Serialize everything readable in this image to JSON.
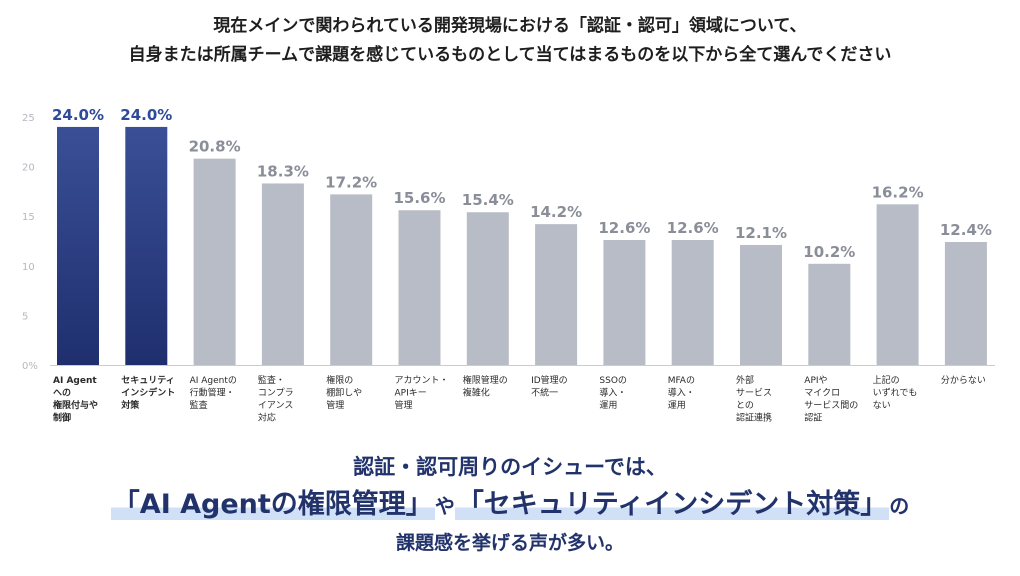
{
  "question": {
    "line1": "現在メインで関わられている開発現場における「認証・認可」領域について、",
    "line2": "自身または所属チームで課題を感じているものとして当てはまるものを以下から全て選んでください"
  },
  "conclusion": {
    "line1": "認証・認可周りのイシューでは、",
    "highlight1": "「AI Agentの権限管理」",
    "connector": "や",
    "highlight2": "「セキュリティインシデント対策」",
    "suffix": "の",
    "line3": "課題感を挙げる声が多い。"
  },
  "colors": {
    "highlight_bar": "#1f2f6e",
    "highlight_bar_top": "#3a4f96",
    "normal_bar": "#b8bcc6",
    "highlight_label": "#2e4a9a",
    "normal_label": "#8a8e98",
    "tick": "#b5b8bf"
  },
  "chart_data": {
    "type": "bar",
    "categories": [
      [
        "AI Agent",
        "への",
        "権限付与や",
        "制御"
      ],
      [
        "セキュリティ",
        "インシデント",
        "対策"
      ],
      [
        "AI Agentの",
        "行動管理・",
        "監査"
      ],
      [
        "監査・",
        "コンプラ",
        "イアンス",
        "対応"
      ],
      [
        "権限の",
        "棚卸しや",
        "管理"
      ],
      [
        "アカウント・",
        "APIキー",
        "管理"
      ],
      [
        "権限管理の",
        "複雑化"
      ],
      [
        "ID管理の",
        "不統一"
      ],
      [
        "SSOの",
        "導入・",
        "運用"
      ],
      [
        "MFAの",
        "導入・",
        "運用"
      ],
      [
        "外部",
        "サービス",
        "との",
        "認証連携"
      ],
      [
        "APIや",
        "マイクロ",
        "サービス間の",
        "認証"
      ],
      [
        "上記の",
        "いずれでも",
        "ない"
      ],
      [
        "分からない"
      ]
    ],
    "values": [
      24.0,
      24.0,
      20.8,
      18.3,
      17.2,
      15.6,
      15.4,
      14.2,
      12.6,
      12.6,
      12.1,
      10.2,
      16.2,
      12.4
    ],
    "value_labels": [
      "24.0%",
      "24.0%",
      "20.8%",
      "18.3%",
      "17.2%",
      "15.6%",
      "15.4%",
      "14.2%",
      "12.6%",
      "12.6%",
      "12.1%",
      "10.2%",
      "16.2%",
      "12.4%"
    ],
    "highlighted": [
      true,
      true,
      false,
      false,
      false,
      false,
      false,
      false,
      false,
      false,
      false,
      false,
      false,
      false
    ],
    "y_ticks": [
      "0%",
      "5",
      "10",
      "15",
      "20",
      "25"
    ],
    "y_tick_values": [
      0,
      5,
      10,
      15,
      20,
      25
    ],
    "ylim": [
      0,
      25
    ],
    "grid": false
  }
}
